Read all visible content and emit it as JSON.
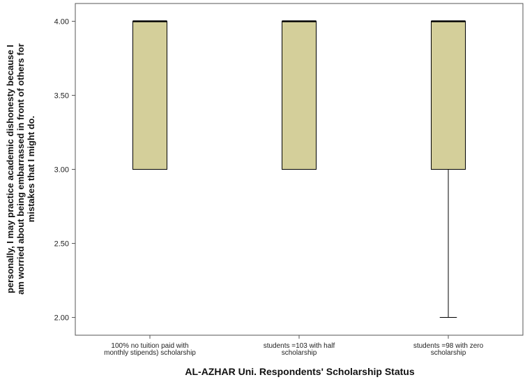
{
  "chart_data": {
    "type": "boxplot",
    "title": "",
    "xlabel": "AL-AZHAR Uni. Respondents' Scholarship Status",
    "ylabel_lines": [
      "personally, I may practice academic dishonesty because I",
      "am worried about being embarrassed in front of others for",
      "mistakes that I might do."
    ],
    "ylim": [
      1.88,
      4.12
    ],
    "yticks": [
      "2.00",
      "2.50",
      "3.00",
      "3.50",
      "4.00"
    ],
    "grid": false,
    "box_color": "#d4cf9a",
    "categories": [
      [
        "100% no tuition paid with",
        "monthly stipends) scholarship"
      ],
      [
        "students =103 with half",
        "scholarship"
      ],
      [
        "students =98 with zero",
        "scholarship"
      ]
    ],
    "boxes": [
      {
        "min": 3.0,
        "q1": 3.0,
        "median": 4.0,
        "q3": 4.0,
        "max": 4.0
      },
      {
        "min": 3.0,
        "q1": 3.0,
        "median": 4.0,
        "q3": 4.0,
        "max": 4.0
      },
      {
        "min": 2.0,
        "q1": 3.0,
        "median": 4.0,
        "q3": 4.0,
        "max": 4.0
      }
    ]
  }
}
